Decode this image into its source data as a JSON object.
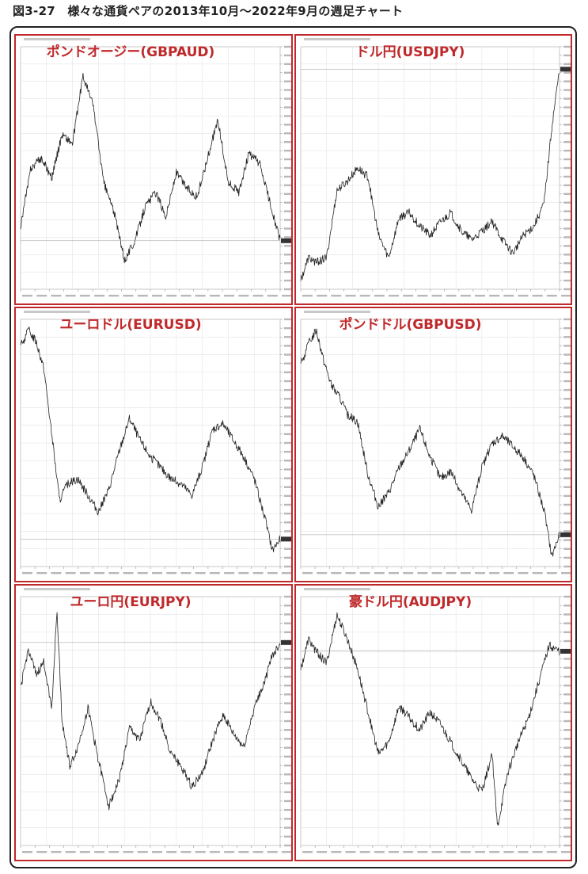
{
  "figure": {
    "title": "図3-27　様々な通貨ペアの2013年10月〜2022年9月の週足チャート"
  },
  "colors": {
    "accent": "#c0292b",
    "line": "#222222",
    "grid": "#e4e4e4"
  },
  "chart_data": [
    {
      "type": "line",
      "title": "ポンドオージー(GBPAUD)",
      "x": [
        0,
        4,
        8,
        12,
        16,
        20,
        24,
        28,
        32,
        36,
        40,
        44,
        48,
        52,
        56,
        60,
        64,
        68,
        72,
        76,
        80,
        84,
        88,
        92,
        96,
        100
      ],
      "values": [
        1.73,
        1.85,
        1.87,
        1.83,
        1.92,
        1.9,
        2.04,
        1.98,
        1.82,
        1.76,
        1.66,
        1.7,
        1.77,
        1.8,
        1.75,
        1.84,
        1.81,
        1.79,
        1.87,
        1.95,
        1.82,
        1.8,
        1.88,
        1.86,
        1.78,
        1.7
      ],
      "ylim": [
        1.6,
        2.1
      ]
    },
    {
      "type": "line",
      "title": "ドル円(USDJPY)",
      "x": [
        0,
        3,
        6,
        10,
        14,
        18,
        22,
        26,
        30,
        34,
        38,
        42,
        46,
        50,
        54,
        58,
        62,
        66,
        70,
        74,
        78,
        82,
        86,
        90,
        94,
        97,
        100
      ],
      "values": [
        98,
        103,
        102,
        103,
        118,
        120,
        123,
        121,
        108,
        103,
        112,
        113,
        110,
        108,
        111,
        113,
        109,
        107,
        109,
        111,
        107,
        104,
        108,
        110,
        115,
        132,
        145
      ],
      "ylim": [
        96,
        150
      ]
    },
    {
      "type": "line",
      "title": "ユーロドル(EURUSD)",
      "x": [
        0,
        3,
        6,
        9,
        12,
        15,
        18,
        22,
        26,
        30,
        34,
        38,
        42,
        46,
        50,
        54,
        58,
        62,
        66,
        70,
        74,
        78,
        82,
        86,
        90,
        94,
        97,
        100
      ],
      "values": [
        1.36,
        1.39,
        1.37,
        1.32,
        1.2,
        1.08,
        1.11,
        1.12,
        1.09,
        1.06,
        1.1,
        1.17,
        1.23,
        1.19,
        1.16,
        1.14,
        1.12,
        1.11,
        1.09,
        1.14,
        1.21,
        1.22,
        1.19,
        1.16,
        1.12,
        1.05,
        0.99,
        1.01
      ],
      "ylim": [
        0.96,
        1.41
      ]
    },
    {
      "type": "line",
      "title": "ポンドドル(GBPUSD)",
      "x": [
        0,
        3,
        6,
        9,
        12,
        15,
        18,
        22,
        26,
        30,
        34,
        38,
        42,
        46,
        50,
        54,
        58,
        62,
        66,
        70,
        74,
        78,
        82,
        86,
        90,
        94,
        97,
        100
      ],
      "values": [
        1.61,
        1.67,
        1.71,
        1.62,
        1.55,
        1.52,
        1.47,
        1.45,
        1.3,
        1.21,
        1.25,
        1.32,
        1.37,
        1.43,
        1.35,
        1.29,
        1.31,
        1.25,
        1.2,
        1.32,
        1.39,
        1.41,
        1.38,
        1.35,
        1.3,
        1.2,
        1.07,
        1.13
      ],
      "ylim": [
        1.04,
        1.74
      ]
    },
    {
      "type": "line",
      "title": "ユーロ円(EURJPY)",
      "x": [
        0,
        3,
        6,
        9,
        12,
        14,
        16,
        19,
        22,
        26,
        30,
        34,
        38,
        42,
        46,
        50,
        54,
        58,
        62,
        66,
        70,
        74,
        78,
        82,
        86,
        90,
        94,
        97,
        100
      ],
      "values": [
        136,
        142,
        138,
        140,
        133,
        148,
        131,
        124,
        127,
        133,
        125,
        118,
        122,
        130,
        128,
        134,
        131,
        126,
        124,
        121,
        123,
        128,
        132,
        129,
        127,
        133,
        137,
        141,
        143
      ],
      "ylim": [
        112,
        150
      ]
    },
    {
      "type": "line",
      "title": "豪ドル円(AUDJPY)",
      "x": [
        0,
        3,
        6,
        10,
        14,
        18,
        22,
        26,
        30,
        34,
        38,
        42,
        46,
        50,
        54,
        58,
        62,
        66,
        70,
        74,
        76,
        80,
        84,
        88,
        92,
        96,
        100
      ],
      "values": [
        92,
        97,
        95,
        93,
        101,
        97,
        92,
        85,
        78,
        80,
        86,
        84,
        82,
        85,
        83,
        80,
        77,
        74,
        72,
        78,
        66,
        75,
        80,
        84,
        90,
        96,
        95
      ],
      "ylim": [
        63,
        104
      ]
    }
  ]
}
